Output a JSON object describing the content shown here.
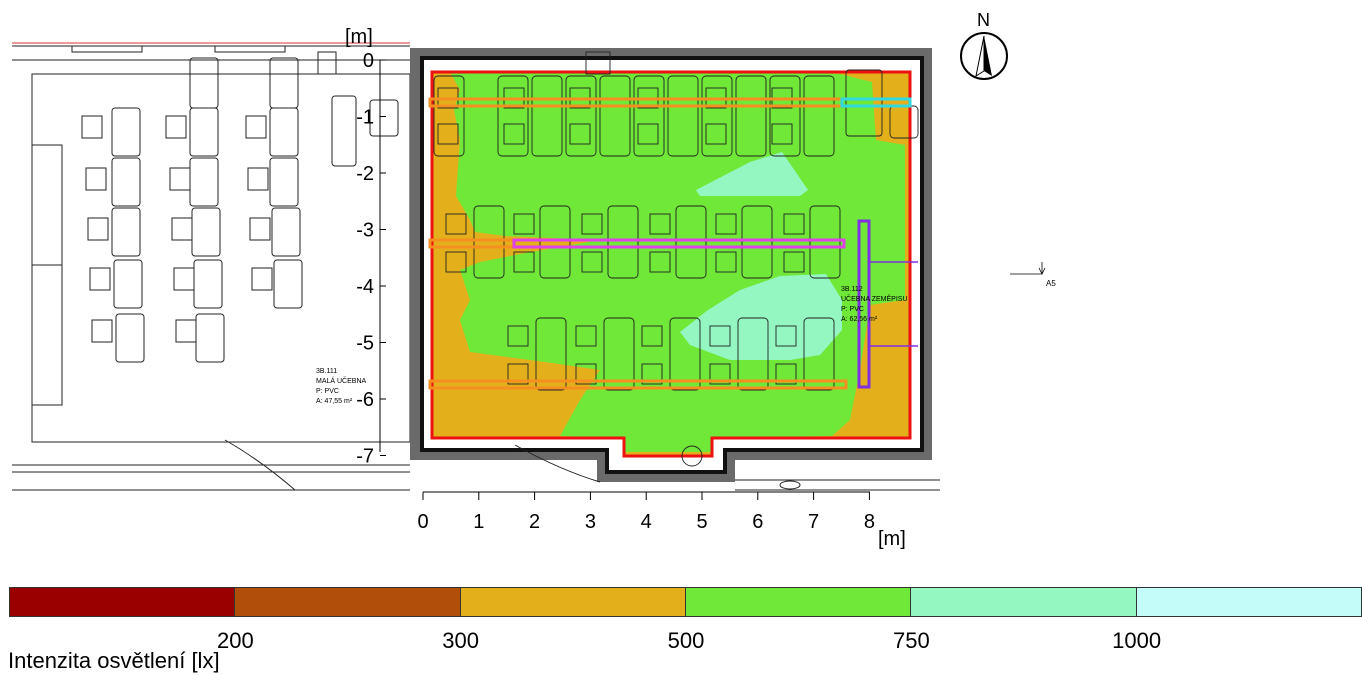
{
  "axis": {
    "unit": "[m]",
    "y_ticks": [
      "0",
      "-1",
      "-2",
      "-3",
      "-4",
      "-5",
      "-6",
      "-7"
    ],
    "x_ticks": [
      "0",
      "1",
      "2",
      "3",
      "4",
      "5",
      "6",
      "7",
      "8"
    ]
  },
  "compass": {
    "north_label": "N"
  },
  "section_marker": {
    "label": "A5"
  },
  "rooms": {
    "left": {
      "code": "3B.111",
      "name": "MALÁ UČEBNA",
      "floor": "P: PVC",
      "area": "A: 47,55 m²"
    },
    "right": {
      "code": "3B.112",
      "name": "UČEBNA ZEMĚPISU",
      "floor": "P: PVC",
      "area": "A: 62,56 m²"
    }
  },
  "legend": {
    "title": "Intenzita osvětlení [lx]",
    "thresholds": [
      "200",
      "300",
      "500",
      "750",
      "1000"
    ],
    "colors": [
      "#990000",
      "#b04e0a",
      "#e3b01c",
      "#70e838",
      "#94f7c2",
      "#c4fcfa"
    ]
  },
  "colors": {
    "wall": "#666666",
    "room_outline": "#ee1111",
    "luminaire_orange": "#f59020",
    "luminaire_magenta": "#e040e8",
    "luminaire_cyan": "#30d8e0",
    "luminaire_purple": "#8030e0"
  }
}
